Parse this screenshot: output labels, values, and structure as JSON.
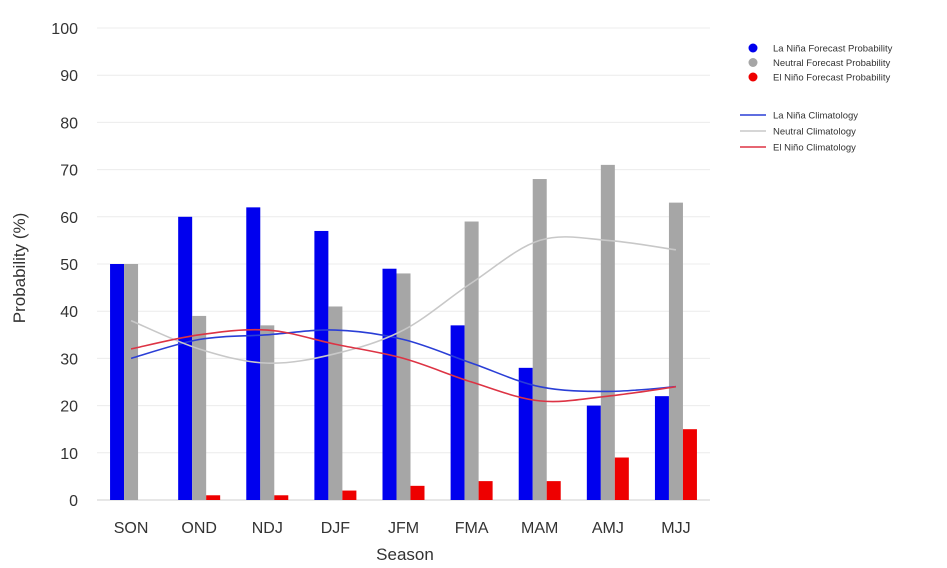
{
  "chart_data": {
    "type": "bar",
    "xlabel": "Season",
    "ylabel": "Probability (%)",
    "ylim": [
      0,
      100
    ],
    "yticks": [
      0,
      10,
      20,
      30,
      40,
      50,
      60,
      70,
      80,
      90,
      100
    ],
    "grid": true,
    "legend_position": "top-right",
    "categories": [
      "SON",
      "OND",
      "NDJ",
      "DJF",
      "JFM",
      "FMA",
      "MAM",
      "AMJ",
      "MJJ"
    ],
    "series": [
      {
        "name": "La Niña Forecast Probability",
        "kind": "bar",
        "color": "#0000ee",
        "values": [
          50,
          60,
          62,
          57,
          49,
          37,
          28,
          20,
          22
        ]
      },
      {
        "name": "Neutral Forecast Probability",
        "kind": "bar",
        "color": "#a6a6a6",
        "values": [
          50,
          39,
          37,
          41,
          48,
          59,
          68,
          71,
          63
        ]
      },
      {
        "name": "El Niño Forecast Probability",
        "kind": "bar",
        "color": "#ee0000",
        "values": [
          0,
          1,
          1,
          2,
          3,
          4,
          4,
          9,
          15
        ]
      },
      {
        "name": "La Niña Climatology",
        "kind": "line",
        "color": "#2a3ed6",
        "values": [
          30,
          34,
          35,
          36,
          34,
          29,
          24,
          23,
          24
        ]
      },
      {
        "name": "Neutral Climatology",
        "kind": "line",
        "color": "#c8c8c8",
        "values": [
          38,
          32,
          29,
          31,
          36,
          46,
          55,
          55,
          53
        ]
      },
      {
        "name": "El Niño Climatology",
        "kind": "line",
        "color": "#dd3344",
        "values": [
          32,
          35,
          36,
          33,
          30,
          25,
          21,
          22,
          24
        ]
      }
    ]
  }
}
